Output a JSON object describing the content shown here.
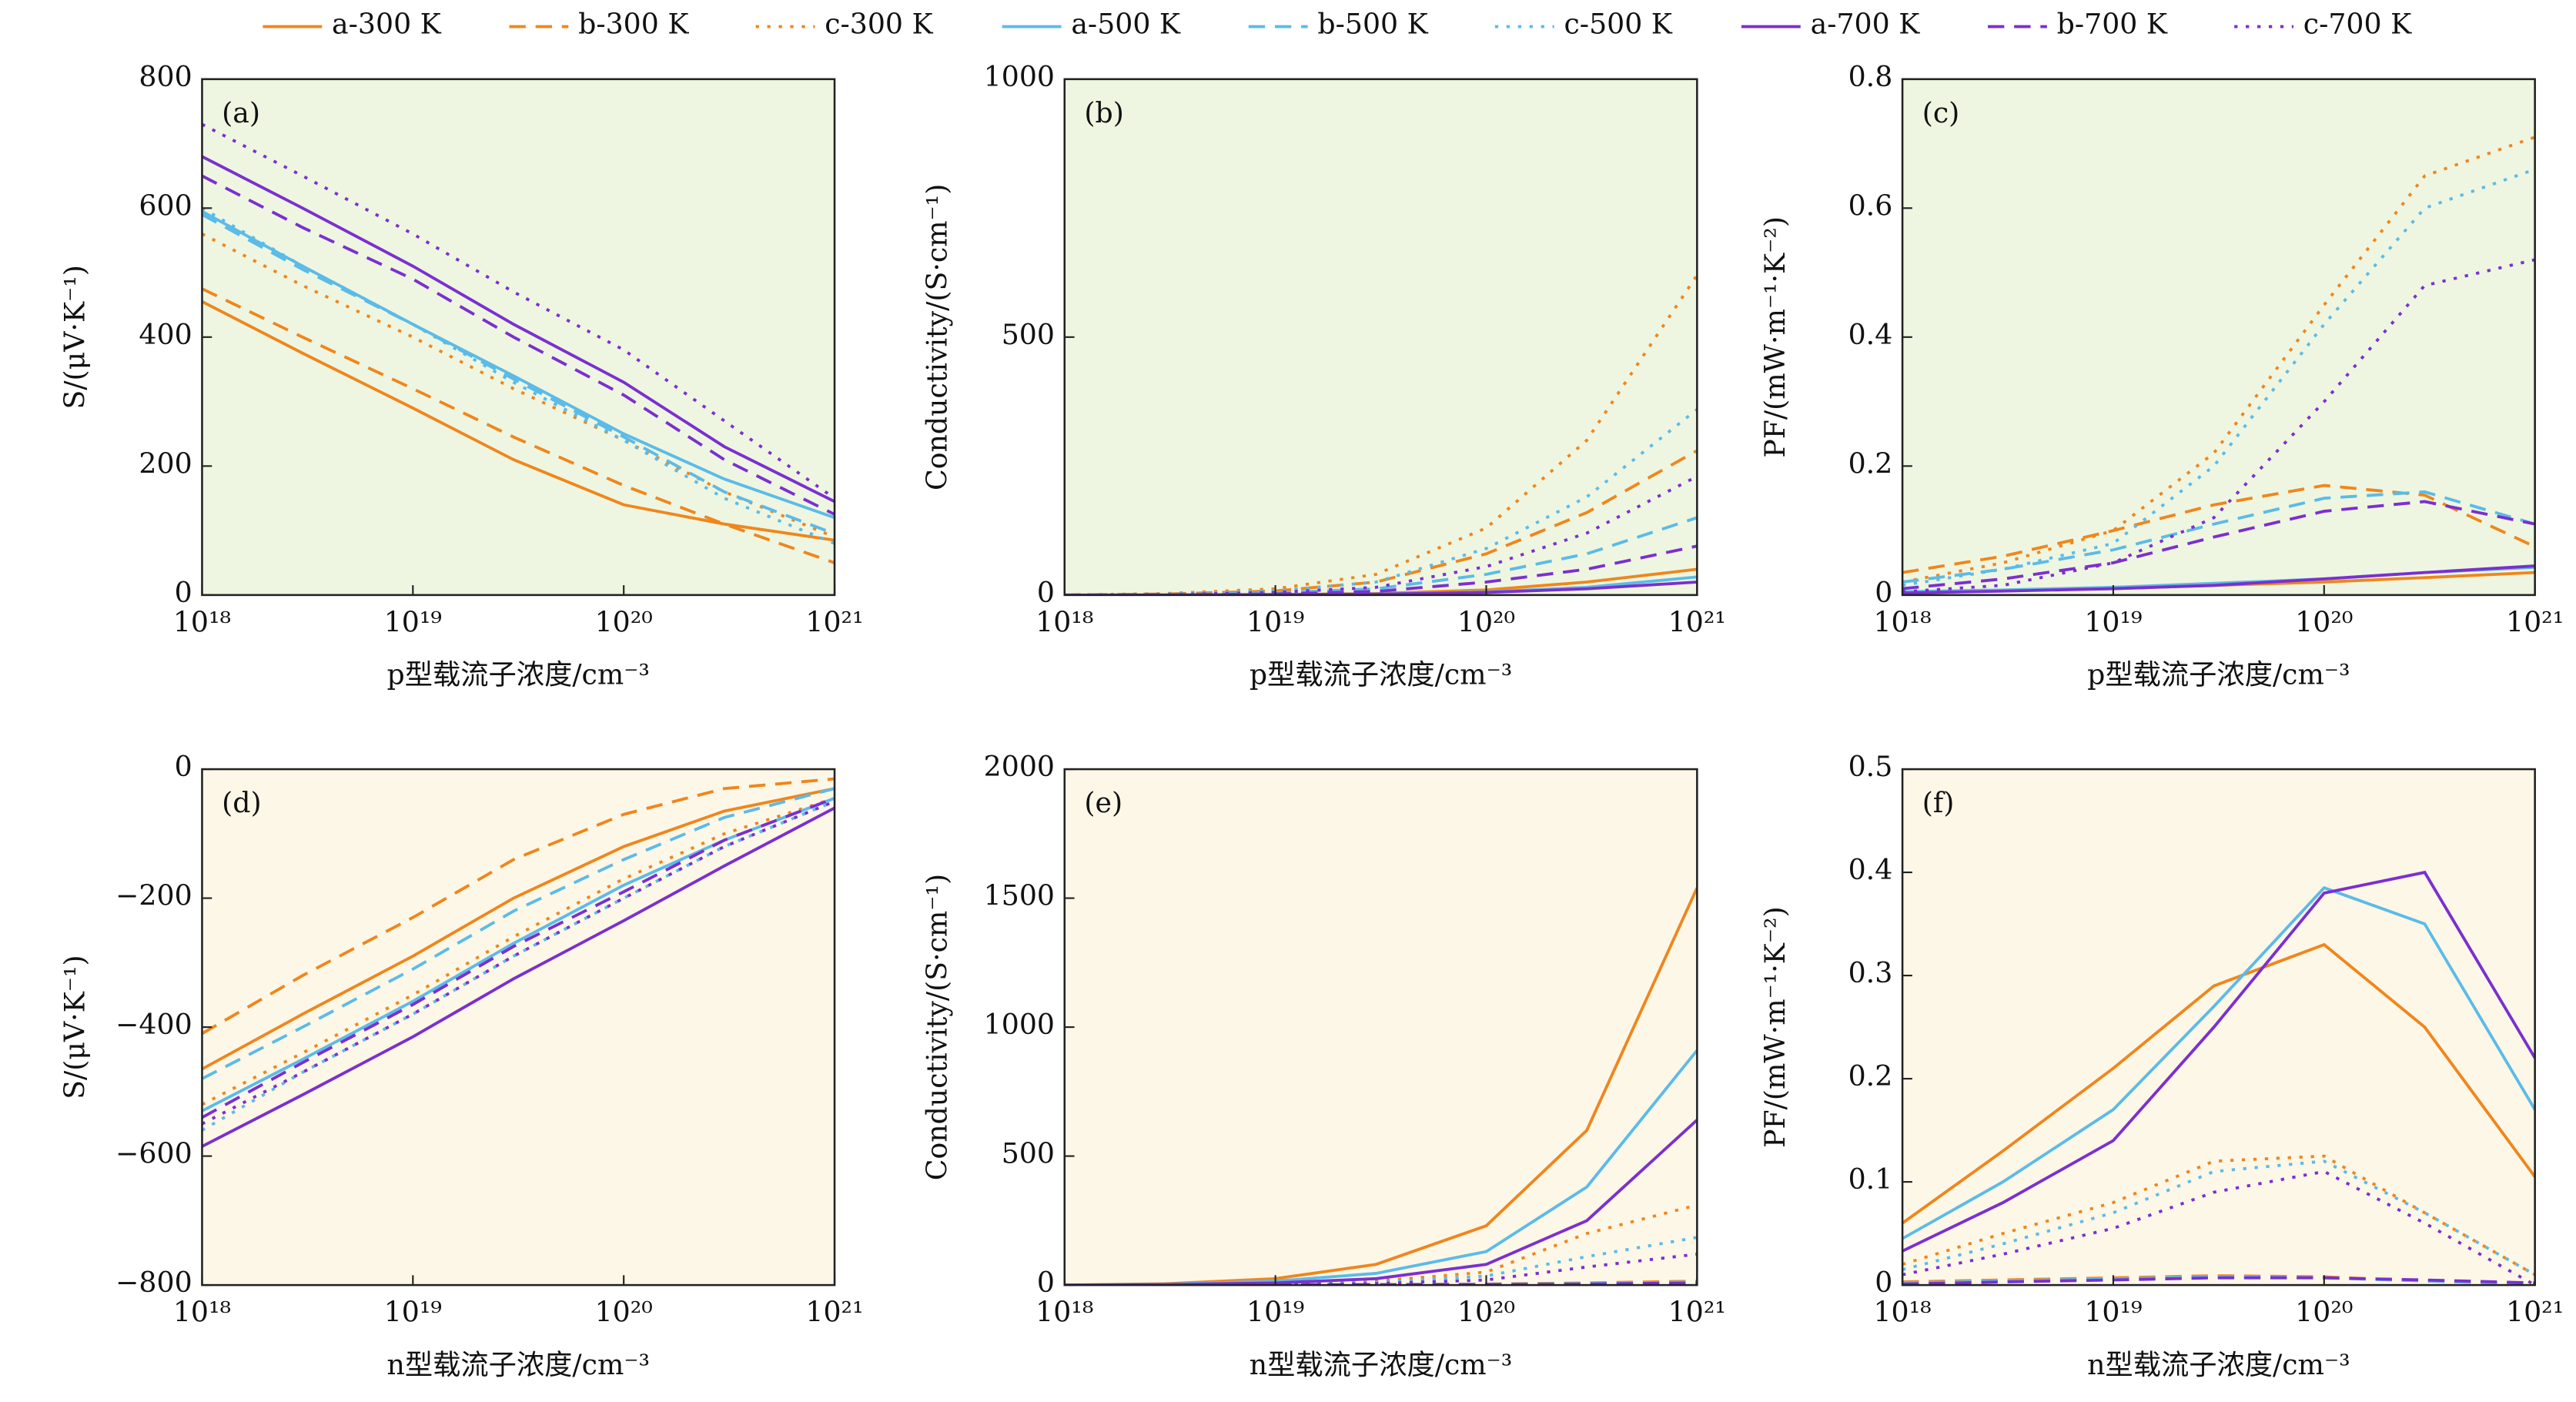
{
  "chart_data": [
    {
      "type": "line",
      "title": "(a)",
      "xlabel": "p型载流子浓度/cm⁻³",
      "ylabel": "S/(μV·K⁻¹)",
      "xscale": "log",
      "background": "#eef6e1",
      "xlim": [
        1e+18,
        1e+21
      ],
      "xticks": [
        {
          "value": 1e+18,
          "label": "10¹⁸"
        },
        {
          "value": 1e+19,
          "label": "10¹⁹"
        },
        {
          "value": 1e+20,
          "label": "10²⁰"
        },
        {
          "value": 1e+21,
          "label": "10²¹"
        }
      ],
      "ylim": [
        0,
        800
      ],
      "yticks": [
        0,
        200,
        400,
        600,
        800
      ],
      "x": [
        1e+18,
        3e+18,
        1e+19,
        3e+19,
        1e+20,
        3e+20,
        1e+21
      ],
      "series": [
        {
          "name": "a-300 K",
          "color": "#f0861c",
          "dash": "solid",
          "values": [
            455,
            375,
            290,
            210,
            140,
            110,
            85
          ]
        },
        {
          "name": "b-300 K",
          "color": "#f0861c",
          "dash": "dashed",
          "values": [
            475,
            400,
            320,
            245,
            170,
            110,
            50
          ]
        },
        {
          "name": "c-300 K",
          "color": "#f0861c",
          "dash": "dotted",
          "values": [
            560,
            480,
            400,
            320,
            240,
            160,
            90
          ]
        },
        {
          "name": "a-500 K",
          "color": "#5bbbe8",
          "dash": "solid",
          "values": [
            595,
            510,
            420,
            340,
            250,
            180,
            120
          ]
        },
        {
          "name": "b-500 K",
          "color": "#5bbbe8",
          "dash": "dashed",
          "values": [
            590,
            505,
            420,
            335,
            245,
            160,
            95
          ]
        },
        {
          "name": "c-500 K",
          "color": "#5bbbe8",
          "dash": "dotted",
          "values": [
            600,
            510,
            420,
            330,
            240,
            150,
            80
          ]
        },
        {
          "name": "a-700 K",
          "color": "#7b2fd0",
          "dash": "solid",
          "values": [
            680,
            600,
            510,
            420,
            330,
            230,
            145
          ]
        },
        {
          "name": "b-700 K",
          "color": "#7b2fd0",
          "dash": "dashed",
          "values": [
            650,
            570,
            490,
            400,
            310,
            210,
            125
          ]
        },
        {
          "name": "c-700 K",
          "color": "#7b2fd0",
          "dash": "dotted",
          "values": [
            730,
            650,
            560,
            470,
            380,
            270,
            150
          ]
        }
      ]
    },
    {
      "type": "line",
      "title": "(b)",
      "xlabel": "p型载流子浓度/cm⁻³",
      "ylabel": "Conductivity/(S·cm⁻¹)",
      "xscale": "log",
      "background": "#eef6e1",
      "xlim": [
        1e+18,
        1e+21
      ],
      "xticks": [
        {
          "value": 1e+18,
          "label": "10¹⁸"
        },
        {
          "value": 1e+19,
          "label": "10¹⁹"
        },
        {
          "value": 1e+20,
          "label": "10²⁰"
        },
        {
          "value": 1e+21,
          "label": "10²¹"
        }
      ],
      "ylim": [
        0,
        1000
      ],
      "yticks": [
        0,
        500,
        1000
      ],
      "x": [
        1e+18,
        3e+18,
        1e+19,
        3e+19,
        1e+20,
        3e+20,
        1e+21
      ],
      "series": [
        {
          "name": "a-300 K",
          "color": "#f0861c",
          "dash": "solid",
          "values": [
            0,
            0.5,
            1,
            3,
            10,
            25,
            50
          ]
        },
        {
          "name": "b-300 K",
          "color": "#f0861c",
          "dash": "dashed",
          "values": [
            0,
            2,
            8,
            25,
            80,
            160,
            280
          ]
        },
        {
          "name": "c-300 K",
          "color": "#f0861c",
          "dash": "dotted",
          "values": [
            0,
            3,
            12,
            40,
            130,
            300,
            620
          ]
        },
        {
          "name": "a-500 K",
          "color": "#5bbbe8",
          "dash": "solid",
          "values": [
            0,
            0,
            1,
            2,
            6,
            15,
            35
          ]
        },
        {
          "name": "b-500 K",
          "color": "#5bbbe8",
          "dash": "dashed",
          "values": [
            0,
            1,
            4,
            12,
            40,
            80,
            150
          ]
        },
        {
          "name": "c-500 K",
          "color": "#5bbbe8",
          "dash": "dotted",
          "values": [
            0,
            2,
            8,
            25,
            90,
            190,
            360
          ]
        },
        {
          "name": "a-700 K",
          "color": "#7b2fd0",
          "dash": "solid",
          "values": [
            0,
            0,
            0.5,
            1.5,
            5,
            12,
            25
          ]
        },
        {
          "name": "b-700 K",
          "color": "#7b2fd0",
          "dash": "dashed",
          "values": [
            0,
            0.5,
            2,
            7,
            25,
            50,
            95
          ]
        },
        {
          "name": "c-700 K",
          "color": "#7b2fd0",
          "dash": "dotted",
          "values": [
            0,
            1,
            5,
            15,
            55,
            120,
            230
          ]
        }
      ]
    },
    {
      "type": "line",
      "title": "(c)",
      "xlabel": "p型载流子浓度/cm⁻³",
      "ylabel": "PF/(mW·m⁻¹·K⁻²)",
      "xscale": "log",
      "background": "#eef6e1",
      "xlim": [
        1e+18,
        1e+21
      ],
      "xticks": [
        {
          "value": 1e+18,
          "label": "10¹⁸"
        },
        {
          "value": 1e+19,
          "label": "10¹⁹"
        },
        {
          "value": 1e+20,
          "label": "10²⁰"
        },
        {
          "value": 1e+21,
          "label": "10²¹"
        }
      ],
      "ylim": [
        0,
        0.8
      ],
      "yticks": [
        0,
        0.2,
        0.4,
        0.6,
        0.8
      ],
      "x": [
        1e+18,
        3e+18,
        1e+19,
        3e+19,
        1e+20,
        3e+20,
        1e+21
      ],
      "series": [
        {
          "name": "a-300 K",
          "color": "#f0861c",
          "dash": "solid",
          "values": [
            0.003,
            0.007,
            0.01,
            0.015,
            0.02,
            0.027,
            0.035
          ]
        },
        {
          "name": "b-300 K",
          "color": "#f0861c",
          "dash": "dashed",
          "values": [
            0.035,
            0.06,
            0.1,
            0.14,
            0.17,
            0.155,
            0.075
          ]
        },
        {
          "name": "c-300 K",
          "color": "#f0861c",
          "dash": "dotted",
          "values": [
            0.02,
            0.05,
            0.1,
            0.22,
            0.45,
            0.65,
            0.71
          ]
        },
        {
          "name": "a-500 K",
          "color": "#5bbbe8",
          "dash": "solid",
          "values": [
            0.005,
            0.008,
            0.012,
            0.018,
            0.025,
            0.035,
            0.043
          ]
        },
        {
          "name": "b-500 K",
          "color": "#5bbbe8",
          "dash": "dashed",
          "values": [
            0.02,
            0.04,
            0.07,
            0.11,
            0.15,
            0.16,
            0.11
          ]
        },
        {
          "name": "c-500 K",
          "color": "#5bbbe8",
          "dash": "dotted",
          "values": [
            0.015,
            0.04,
            0.08,
            0.2,
            0.42,
            0.6,
            0.66
          ]
        },
        {
          "name": "a-700 K",
          "color": "#7b2fd0",
          "dash": "solid",
          "values": [
            0.003,
            0.006,
            0.01,
            0.015,
            0.025,
            0.035,
            0.045
          ]
        },
        {
          "name": "b-700 K",
          "color": "#7b2fd0",
          "dash": "dashed",
          "values": [
            0.01,
            0.025,
            0.05,
            0.09,
            0.13,
            0.145,
            0.11
          ]
        },
        {
          "name": "c-700 K",
          "color": "#7b2fd0",
          "dash": "dotted",
          "values": [
            0.005,
            0.015,
            0.05,
            0.12,
            0.3,
            0.48,
            0.52
          ]
        }
      ]
    },
    {
      "type": "line",
      "title": "(d)",
      "xlabel": "n型载流子浓度/cm⁻³",
      "ylabel": "S/(μV·K⁻¹)",
      "xscale": "log",
      "background": "#fdf7e8",
      "xlim": [
        1e+18,
        1e+21
      ],
      "xticks": [
        {
          "value": 1e+18,
          "label": "10¹⁸"
        },
        {
          "value": 1e+19,
          "label": "10¹⁹"
        },
        {
          "value": 1e+20,
          "label": "10²⁰"
        },
        {
          "value": 1e+21,
          "label": "10²¹"
        }
      ],
      "ylim": [
        -800,
        0
      ],
      "yticks": [
        {
          "value": -800,
          "label": "−800"
        },
        {
          "value": -600,
          "label": "−600"
        },
        {
          "value": -400,
          "label": "−400"
        },
        {
          "value": -200,
          "label": "−200"
        },
        0
      ],
      "x": [
        1e+18,
        3e+18,
        1e+19,
        3e+19,
        1e+20,
        3e+20,
        1e+21
      ],
      "series": [
        {
          "name": "a-300 K",
          "color": "#f0861c",
          "dash": "solid",
          "values": [
            -465,
            -380,
            -290,
            -200,
            -120,
            -65,
            -30
          ]
        },
        {
          "name": "b-300 K",
          "color": "#f0861c",
          "dash": "dashed",
          "values": [
            -410,
            -320,
            -230,
            -140,
            -70,
            -30,
            -15
          ]
        },
        {
          "name": "c-300 K",
          "color": "#f0861c",
          "dash": "dotted",
          "values": [
            -520,
            -440,
            -350,
            -260,
            -170,
            -100,
            -45
          ]
        },
        {
          "name": "a-500 K",
          "color": "#5bbbe8",
          "dash": "solid",
          "values": [
            -530,
            -450,
            -360,
            -270,
            -180,
            -110,
            -45
          ]
        },
        {
          "name": "b-500 K",
          "color": "#5bbbe8",
          "dash": "dashed",
          "values": [
            -480,
            -400,
            -310,
            -220,
            -140,
            -75,
            -30
          ]
        },
        {
          "name": "c-500 K",
          "color": "#5bbbe8",
          "dash": "dotted",
          "values": [
            -560,
            -470,
            -380,
            -290,
            -200,
            -120,
            -50
          ]
        },
        {
          "name": "a-700 K",
          "color": "#7b2fd0",
          "dash": "solid",
          "values": [
            -585,
            -505,
            -415,
            -325,
            -235,
            -150,
            -60
          ]
        },
        {
          "name": "b-700 K",
          "color": "#7b2fd0",
          "dash": "dashed",
          "values": [
            -540,
            -455,
            -365,
            -275,
            -190,
            -110,
            -45
          ]
        },
        {
          "name": "c-700 K",
          "color": "#7b2fd0",
          "dash": "dotted",
          "values": [
            -550,
            -470,
            -380,
            -290,
            -200,
            -120,
            -50
          ]
        }
      ]
    },
    {
      "type": "line",
      "title": "(e)",
      "xlabel": "n型载流子浓度/cm⁻³",
      "ylabel": "Conductivity/(S·cm⁻¹)",
      "xscale": "log",
      "background": "#fdf7e8",
      "xlim": [
        1e+18,
        1e+21
      ],
      "xticks": [
        {
          "value": 1e+18,
          "label": "10¹⁸"
        },
        {
          "value": 1e+19,
          "label": "10¹⁹"
        },
        {
          "value": 1e+20,
          "label": "10²⁰"
        },
        {
          "value": 1e+21,
          "label": "10²¹"
        }
      ],
      "ylim": [
        0,
        2000
      ],
      "yticks": [
        0,
        500,
        1000,
        1500,
        2000
      ],
      "x": [
        1e+18,
        3e+18,
        1e+19,
        3e+19,
        1e+20,
        3e+20,
        1e+21
      ],
      "series": [
        {
          "name": "a-300 K",
          "color": "#f0861c",
          "dash": "solid",
          "values": [
            0,
            5,
            25,
            80,
            230,
            600,
            1540
          ]
        },
        {
          "name": "b-300 K",
          "color": "#f0861c",
          "dash": "dashed",
          "values": [
            0,
            0.5,
            1,
            2,
            4,
            8,
            15
          ]
        },
        {
          "name": "c-300 K",
          "color": "#f0861c",
          "dash": "dotted",
          "values": [
            0,
            1,
            4,
            15,
            50,
            200,
            310
          ]
        },
        {
          "name": "a-500 K",
          "color": "#5bbbe8",
          "dash": "solid",
          "values": [
            0,
            3,
            15,
            45,
            130,
            380,
            910
          ]
        },
        {
          "name": "b-500 K",
          "color": "#5bbbe8",
          "dash": "dashed",
          "values": [
            0,
            0.3,
            1,
            2,
            3,
            6,
            12
          ]
        },
        {
          "name": "c-500 K",
          "color": "#5bbbe8",
          "dash": "dotted",
          "values": [
            0,
            1,
            3,
            10,
            35,
            110,
            185
          ]
        },
        {
          "name": "a-700 K",
          "color": "#7b2fd0",
          "dash": "solid",
          "values": [
            0,
            2,
            8,
            25,
            80,
            250,
            640
          ]
        },
        {
          "name": "b-700 K",
          "color": "#7b2fd0",
          "dash": "dashed",
          "values": [
            0,
            0.2,
            0.5,
            1,
            2,
            4,
            8
          ]
        },
        {
          "name": "c-700 K",
          "color": "#7b2fd0",
          "dash": "dotted",
          "values": [
            0,
            0.5,
            2,
            6,
            20,
            70,
            120
          ]
        }
      ]
    },
    {
      "type": "line",
      "title": "(f)",
      "xlabel": "n型载流子浓度/cm⁻³",
      "ylabel": "PF/(mW·m⁻¹·K⁻²)",
      "xscale": "log",
      "background": "#fdf7e8",
      "xlim": [
        1e+18,
        1e+21
      ],
      "xticks": [
        {
          "value": 1e+18,
          "label": "10¹⁸"
        },
        {
          "value": 1e+19,
          "label": "10¹⁹"
        },
        {
          "value": 1e+20,
          "label": "10²⁰"
        },
        {
          "value": 1e+21,
          "label": "10²¹"
        }
      ],
      "ylim": [
        0,
        0.5
      ],
      "yticks": [
        0,
        0.1,
        0.2,
        0.3,
        0.4,
        0.5
      ],
      "x": [
        1e+18,
        3e+18,
        1e+19,
        3e+19,
        1e+20,
        3e+20,
        1e+21
      ],
      "series": [
        {
          "name": "a-300 K",
          "color": "#f0861c",
          "dash": "solid",
          "values": [
            0.06,
            0.13,
            0.21,
            0.29,
            0.33,
            0.25,
            0.105
          ]
        },
        {
          "name": "b-300 K",
          "color": "#f0861c",
          "dash": "dashed",
          "values": [
            0.003,
            0.005,
            0.007,
            0.009,
            0.008,
            0.004,
            0.001
          ]
        },
        {
          "name": "c-300 K",
          "color": "#f0861c",
          "dash": "dotted",
          "values": [
            0.02,
            0.05,
            0.08,
            0.12,
            0.125,
            0.07,
            0.01
          ]
        },
        {
          "name": "a-500 K",
          "color": "#5bbbe8",
          "dash": "solid",
          "values": [
            0.045,
            0.1,
            0.17,
            0.27,
            0.385,
            0.35,
            0.17
          ]
        },
        {
          "name": "b-500 K",
          "color": "#5bbbe8",
          "dash": "dashed",
          "values": [
            0.002,
            0.004,
            0.006,
            0.008,
            0.007,
            0.004,
            0.001
          ]
        },
        {
          "name": "c-500 K",
          "color": "#5bbbe8",
          "dash": "dotted",
          "values": [
            0.015,
            0.04,
            0.07,
            0.11,
            0.12,
            0.07,
            0.01
          ]
        },
        {
          "name": "a-700 K",
          "color": "#7b2fd0",
          "dash": "solid",
          "values": [
            0.033,
            0.08,
            0.14,
            0.25,
            0.38,
            0.4,
            0.22
          ]
        },
        {
          "name": "b-700 K",
          "color": "#7b2fd0",
          "dash": "dashed",
          "values": [
            0.001,
            0.003,
            0.005,
            0.007,
            0.007,
            0.005,
            0.002
          ]
        },
        {
          "name": "c-700 K",
          "color": "#7b2fd0",
          "dash": "dotted",
          "values": [
            0.01,
            0.03,
            0.055,
            0.09,
            0.11,
            0.06,
            0
          ]
        }
      ]
    }
  ]
}
